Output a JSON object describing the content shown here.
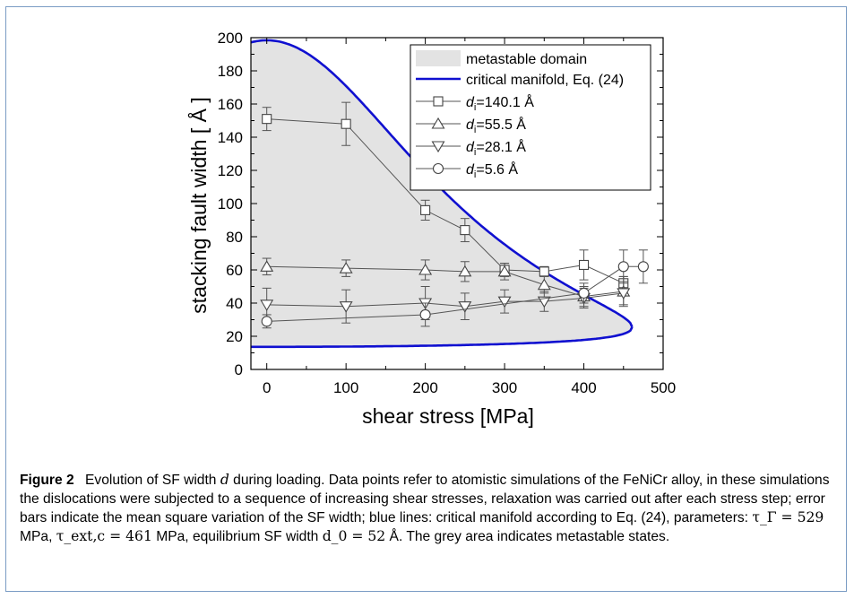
{
  "chart_data": {
    "type": "scatter",
    "xlabel": "shear stress [MPa]",
    "ylabel": "stacking fault width [ Å ]",
    "xlim": [
      -20,
      500
    ],
    "ylim": [
      0,
      200
    ],
    "xticks": [
      0,
      100,
      200,
      300,
      400,
      500
    ],
    "yticks": [
      0,
      20,
      40,
      60,
      80,
      100,
      120,
      140,
      160,
      180,
      200
    ],
    "grid": false,
    "legend_position": "top-right",
    "metastable_label": "metastable domain",
    "manifold_label": "critical manifold, Eq. (24)",
    "manifold_color": "#1010d0",
    "domain_color": "#e3e3e3",
    "manifold_params": {
      "tau_gamma": 529,
      "tau_ext_c": 461,
      "d0": 52
    },
    "series": [
      {
        "name_prefix": "d",
        "name_sub": "i",
        "name_suffix": "=140.1 Å",
        "marker": "square",
        "x": [
          0,
          100,
          200,
          250,
          300,
          350,
          400,
          450
        ],
        "y": [
          151,
          148,
          96,
          84,
          60,
          59,
          63,
          52
        ],
        "err": [
          7,
          13,
          6,
          7,
          4,
          3,
          9,
          4
        ]
      },
      {
        "name_prefix": "d",
        "name_sub": "i",
        "name_suffix": "=55.5 Å",
        "marker": "triangle-up",
        "x": [
          0,
          100,
          200,
          250,
          300,
          350,
          400,
          450
        ],
        "y": [
          62,
          61,
          60,
          59,
          59,
          51,
          44,
          47
        ],
        "err": [
          5,
          5,
          6,
          6,
          5,
          5,
          6,
          9
        ]
      },
      {
        "name_prefix": "d",
        "name_sub": "i",
        "name_suffix": "=28.1 Å",
        "marker": "triangle-down",
        "x": [
          0,
          100,
          200,
          250,
          300,
          350,
          400,
          450
        ],
        "y": [
          39,
          38,
          40,
          38,
          41,
          41,
          43,
          46
        ],
        "err": [
          10,
          10,
          10,
          8,
          7,
          6,
          6,
          7
        ]
      },
      {
        "name_prefix": "d",
        "name_sub": "i",
        "name_suffix": "=5.6 Å",
        "marker": "circle",
        "x": [
          0,
          200,
          400,
          450,
          475
        ],
        "y": [
          29,
          33,
          46,
          62,
          62
        ],
        "err": [
          4,
          7,
          6,
          10,
          10
        ]
      }
    ]
  },
  "caption": {
    "label": "Figure 2",
    "t1": "Evolution of SF width ",
    "d_sym": "d",
    "t2": " during loading. Data points refer to atomistic simulations of the FeNiCr alloy, in these simulations the dislocations were subjected to a sequence of increasing shear stresses, relaxation was carried out after each stress step; error bars indicate the mean square variation of the SF width; blue lines: critical manifold according to Eq. (24), parameters: ",
    "tau_gamma": "τ_Γ = 529",
    "t3": " MPa, ",
    "tau_ext": "τ_ext,c = 461",
    "t4": " MPa, equilibrium SF width ",
    "d0": "d_0 = 52",
    "t5": " Å. The grey area indicates metastable states."
  }
}
